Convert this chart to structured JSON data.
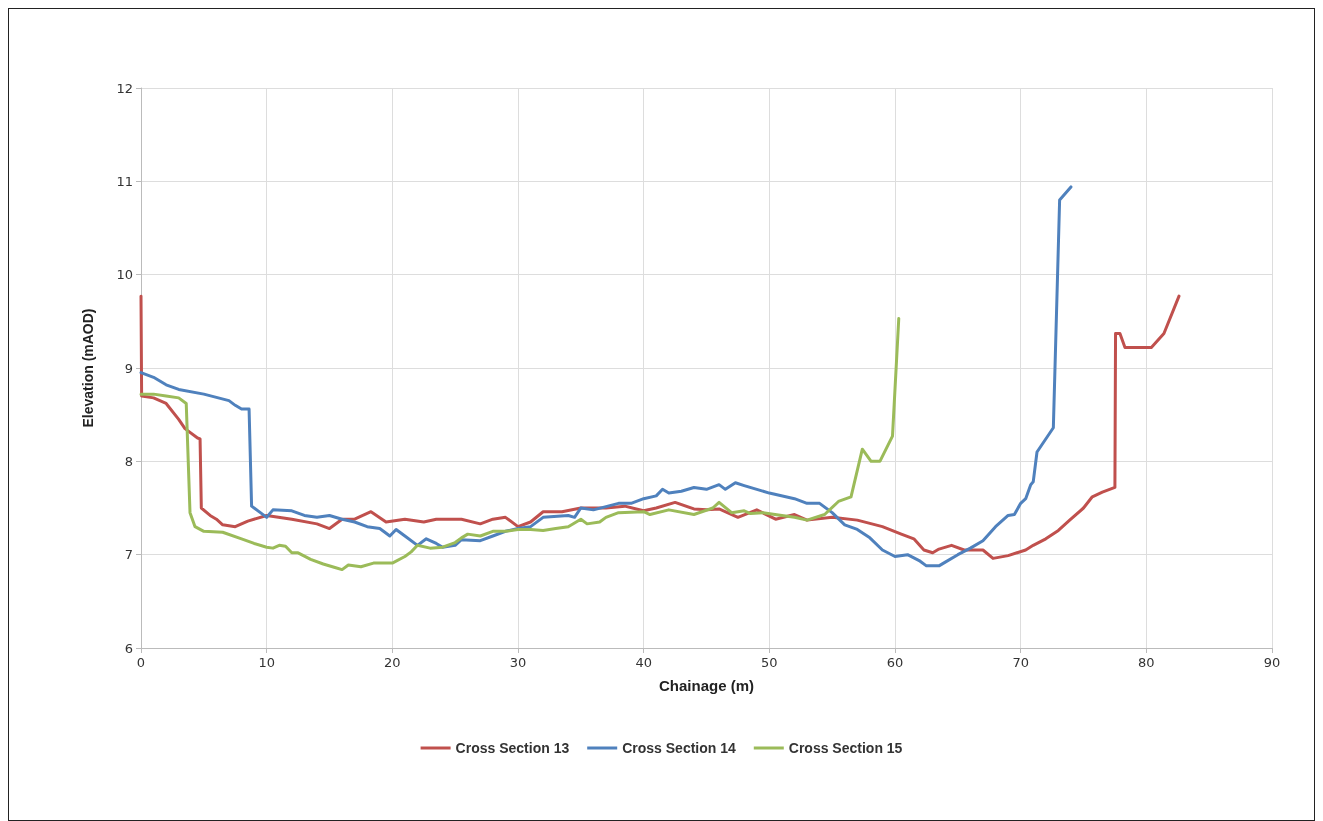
{
  "chart_data": {
    "type": "line",
    "xlabel": "Chainage (m)",
    "ylabel": "Elevation (mAOD)",
    "xlim": [
      0,
      90
    ],
    "xticks": [
      0,
      10,
      20,
      30,
      40,
      50,
      60,
      70,
      80,
      90
    ],
    "ylim": [
      6,
      12
    ],
    "yticks": [
      6,
      7,
      8,
      9,
      10,
      11,
      12
    ],
    "grid": true,
    "legend": "bottom",
    "marker": "none",
    "line_style": "solid",
    "series": [
      {
        "name": "Cross Section 13",
        "color": "#c0504d",
        "x": [
          0,
          0.05,
          1,
          2,
          3,
          3.5,
          4.5,
          4.7,
          4.8,
          5.5,
          6,
          6.5,
          7.5,
          8.5,
          10,
          12,
          14,
          15,
          16,
          17,
          18.3,
          19.5,
          21,
          22.5,
          23.5,
          25.5,
          27,
          28,
          29,
          30,
          31,
          32,
          33.5,
          35,
          37,
          38.5,
          40,
          41,
          42.5,
          44,
          45,
          46,
          47.5,
          49,
          50.5,
          52,
          53,
          55,
          57,
          59,
          60.5,
          61.5,
          62.3,
          63,
          63.5,
          64.5,
          65.5,
          67,
          67.8,
          69,
          70.4,
          71,
          72,
          73,
          73.9,
          75,
          75.7,
          76.5,
          77.5,
          77.55,
          77.9,
          78.3,
          80.4,
          81.4,
          82.6
        ],
        "values": [
          9.77,
          8.7,
          8.68,
          8.62,
          8.45,
          8.35,
          8.25,
          8.24,
          7.5,
          7.42,
          7.38,
          7.32,
          7.3,
          7.36,
          7.42,
          7.38,
          7.33,
          7.28,
          7.38,
          7.38,
          7.46,
          7.35,
          7.38,
          7.35,
          7.38,
          7.38,
          7.33,
          7.38,
          7.4,
          7.3,
          7.35,
          7.46,
          7.46,
          7.5,
          7.5,
          7.52,
          7.47,
          7.5,
          7.56,
          7.49,
          7.48,
          7.49,
          7.4,
          7.48,
          7.38,
          7.43,
          7.37,
          7.4,
          7.37,
          7.3,
          7.22,
          7.17,
          7.05,
          7.02,
          7.06,
          7.1,
          7.05,
          7.05,
          6.96,
          6.99,
          7.05,
          7.1,
          7.17,
          7.26,
          7.37,
          7.5,
          7.62,
          7.67,
          7.72,
          9.37,
          9.37,
          9.22,
          9.22,
          9.37,
          9.77
        ]
      },
      {
        "name": "Cross Section 14",
        "color": "#4f81bd",
        "x": [
          0,
          1,
          2,
          3,
          5,
          7,
          7.5,
          8,
          8.6,
          8.8,
          9.5,
          10,
          10.5,
          12,
          13,
          14,
          15,
          16,
          17,
          18,
          19,
          19.8,
          20.3,
          21,
          22,
          22.7,
          23.5,
          24,
          25,
          25.5,
          27,
          28,
          29,
          30,
          31,
          32,
          34,
          34.5,
          35,
          36,
          38,
          39,
          40,
          41,
          41.5,
          42,
          43,
          44,
          45,
          46,
          46.5,
          47.3,
          48,
          50,
          52,
          53,
          54,
          55,
          56,
          57,
          58,
          59,
          60,
          61,
          62,
          62.5,
          63.5,
          64,
          65,
          66,
          67,
          68,
          69,
          69.5,
          70,
          70.4,
          70.8,
          71,
          71.3,
          72.6,
          73.1,
          74
        ],
        "values": [
          8.95,
          8.9,
          8.82,
          8.77,
          8.72,
          8.65,
          8.6,
          8.56,
          8.56,
          7.52,
          7.45,
          7.4,
          7.48,
          7.47,
          7.42,
          7.4,
          7.42,
          7.38,
          7.35,
          7.3,
          7.28,
          7.2,
          7.27,
          7.2,
          7.1,
          7.17,
          7.12,
          7.08,
          7.1,
          7.16,
          7.15,
          7.2,
          7.25,
          7.28,
          7.3,
          7.4,
          7.42,
          7.4,
          7.5,
          7.48,
          7.55,
          7.55,
          7.6,
          7.63,
          7.7,
          7.66,
          7.68,
          7.72,
          7.7,
          7.75,
          7.7,
          7.77,
          7.74,
          7.66,
          7.6,
          7.55,
          7.55,
          7.45,
          7.32,
          7.27,
          7.18,
          7.05,
          6.98,
          7,
          6.93,
          6.88,
          6.88,
          6.92,
          7,
          7.07,
          7.15,
          7.3,
          7.42,
          7.43,
          7.55,
          7.6,
          7.75,
          7.78,
          8.1,
          8.36,
          10.8,
          10.94
        ]
      },
      {
        "name": "Cross Section 15",
        "color": "#9bbb59",
        "x": [
          0,
          1,
          2,
          3,
          3.6,
          3.9,
          4.3,
          5,
          6.5,
          8,
          9,
          10,
          10.5,
          11,
          11.5,
          12,
          12.5,
          13.5,
          14.5,
          15.5,
          16,
          16.5,
          17.5,
          18.5,
          20,
          21,
          21.5,
          22,
          23,
          24,
          25,
          25.5,
          26,
          27,
          28,
          29,
          30,
          31,
          32,
          33,
          34,
          35,
          35.5,
          36.5,
          37,
          38,
          40,
          40.5,
          42,
          44,
          45.5,
          46,
          47,
          48,
          48.5,
          49.5,
          51,
          52,
          53,
          54.4,
          55.5,
          56.5,
          57.4,
          58.1,
          58.8,
          59.8,
          60.3
        ],
        "values": [
          8.72,
          8.72,
          8.7,
          8.68,
          8.62,
          7.45,
          7.3,
          7.25,
          7.24,
          7.17,
          7.12,
          7.08,
          7.07,
          7.1,
          7.09,
          7.02,
          7.02,
          6.95,
          6.9,
          6.86,
          6.84,
          6.89,
          6.87,
          6.91,
          6.91,
          6.98,
          7.03,
          7.1,
          7.07,
          7.08,
          7.13,
          7.18,
          7.22,
          7.2,
          7.25,
          7.25,
          7.27,
          7.27,
          7.26,
          7.28,
          7.3,
          7.38,
          7.33,
          7.35,
          7.4,
          7.45,
          7.46,
          7.43,
          7.48,
          7.43,
          7.5,
          7.56,
          7.45,
          7.47,
          7.44,
          7.45,
          7.42,
          7.4,
          7.37,
          7.43,
          7.57,
          7.62,
          8.13,
          8,
          8,
          8.27,
          9.53
        ]
      }
    ]
  }
}
